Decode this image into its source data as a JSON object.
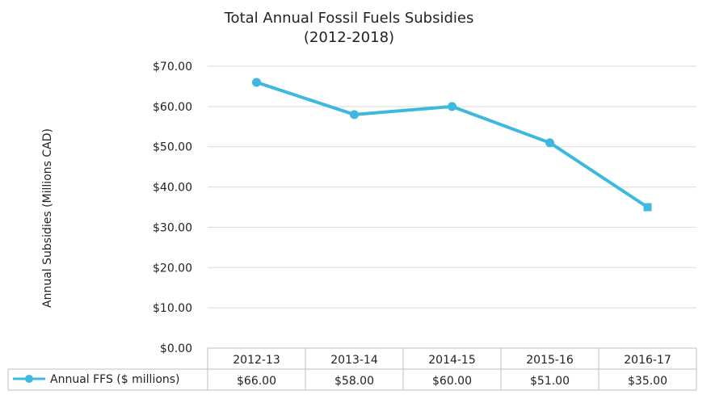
{
  "chart_data": {
    "type": "line",
    "title": "Total Annual Fossil Fuels Subsidies",
    "subtitle": "(2012-2018)",
    "ylabel": "Annual Subsidies (Millions CAD)",
    "xlabel": "",
    "ylim": [
      0,
      70
    ],
    "yticks": [
      "$0.00",
      "$10.00",
      "$20.00",
      "$30.00",
      "$40.00",
      "$50.00",
      "$60.00",
      "$70.00"
    ],
    "grid": true,
    "categories": [
      "2012-13",
      "2013-14",
      "2014-15",
      "2015-16",
      "2016-17"
    ],
    "series": [
      {
        "name": "Annual FFS ($ millions)",
        "values": [
          66,
          58,
          60,
          51,
          35
        ],
        "labels": [
          "$66.00",
          "$58.00",
          "$60.00",
          "$51.00",
          "$35.00"
        ],
        "color": "#3fb8e0"
      }
    ],
    "legend": "data-table-left"
  }
}
